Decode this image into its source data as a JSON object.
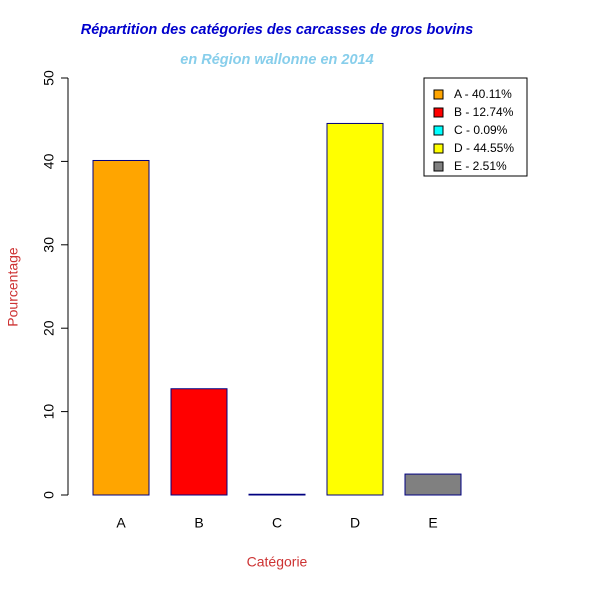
{
  "chart_data": {
    "type": "bar",
    "title": "Répartition des catégories des carcasses de gros bovins",
    "subtitle": "en Région wallonne en 2014",
    "x_label": "Catégorie",
    "y_label": "Pourcentage",
    "categories": [
      "A",
      "B",
      "C",
      "D",
      "E"
    ],
    "values": [
      40.11,
      12.74,
      0.09,
      44.55,
      2.51
    ],
    "colors": [
      "#ffa500",
      "#ff0000",
      "#00ffff",
      "#ffff00",
      "#808080"
    ],
    "legend": [
      "A - 40.11%",
      "B - 12.74%",
      "C - 0.09%",
      "D - 44.55%",
      "E - 2.51%"
    ],
    "legend_position": "top-right",
    "ylim": [
      0,
      50
    ],
    "yticks": [
      0,
      10,
      20,
      30,
      40,
      50
    ]
  }
}
